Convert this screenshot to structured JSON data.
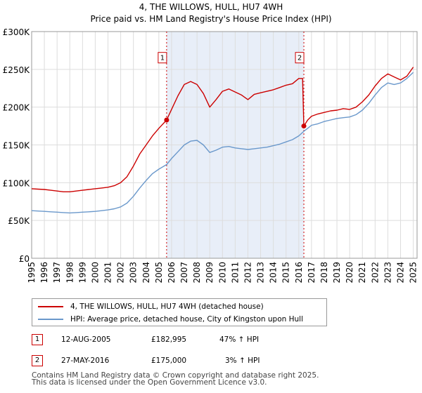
{
  "chart_data": {
    "type": "line",
    "title": "4, THE WILLOWS, HULL, HU7 4WH",
    "subtitle": "Price paid vs. HM Land Registry's House Price Index (HPI)",
    "xlabel": "",
    "ylabel": "",
    "xlim": [
      1995,
      2025.3
    ],
    "ylim": [
      0,
      300000
    ],
    "y_ticks": [
      0,
      50000,
      100000,
      150000,
      200000,
      250000,
      300000
    ],
    "y_tick_labels": [
      "£0",
      "£50K",
      "£100K",
      "£150K",
      "£200K",
      "£250K",
      "£300K"
    ],
    "x_ticks": [
      1995,
      1996,
      1997,
      1998,
      1999,
      2000,
      2001,
      2002,
      2003,
      2004,
      2005,
      2006,
      2007,
      2008,
      2009,
      2010,
      2011,
      2012,
      2013,
      2014,
      2015,
      2016,
      2017,
      2018,
      2019,
      2020,
      2021,
      2022,
      2023,
      2024,
      2025
    ],
    "x_tick_labels": [
      "1995",
      "1996",
      "1997",
      "1998",
      "1999",
      "2000",
      "2001",
      "2002",
      "2003",
      "2004",
      "2005",
      "2006",
      "2007",
      "2008",
      "2009",
      "2010",
      "2011",
      "2012",
      "2013",
      "2014",
      "2015",
      "2016",
      "2017",
      "2018",
      "2019",
      "2020",
      "2021",
      "2022",
      "2023",
      "2024",
      "2025"
    ],
    "grid": true,
    "shaded_region": [
      2005.61,
      2016.4
    ],
    "series": [
      {
        "name": "4, THE WILLOWS, HULL, HU7 4WH (detached house)",
        "color": "#cc0000",
        "x": [
          1995.0,
          1995.5,
          1996.0,
          1996.5,
          1997.0,
          1997.5,
          1998.0,
          1998.5,
          1999.0,
          1999.5,
          2000.0,
          2000.5,
          2001.0,
          2001.5,
          2002.0,
          2002.5,
          2003.0,
          2003.5,
          2004.0,
          2004.5,
          2005.0,
          2005.61,
          2006.0,
          2006.5,
          2007.0,
          2007.5,
          2008.0,
          2008.5,
          2009.0,
          2009.5,
          2010.0,
          2010.5,
          2011.0,
          2011.5,
          2012.0,
          2012.5,
          2013.0,
          2013.5,
          2014.0,
          2014.5,
          2015.0,
          2015.5,
          2016.0,
          2016.3,
          2016.4,
          2016.7,
          2017.0,
          2017.5,
          2018.0,
          2018.5,
          2019.0,
          2019.5,
          2020.0,
          2020.5,
          2021.0,
          2021.5,
          2022.0,
          2022.5,
          2023.0,
          2023.5,
          2024.0,
          2024.5,
          2025.0
        ],
        "y": [
          92000,
          91500,
          91000,
          90000,
          89000,
          88000,
          88000,
          89000,
          90000,
          91000,
          92000,
          93000,
          94000,
          96000,
          100000,
          108000,
          122000,
          138000,
          150000,
          162000,
          172000,
          182995,
          197000,
          215000,
          230000,
          234000,
          230000,
          218000,
          200000,
          210000,
          221000,
          224000,
          220000,
          216000,
          210000,
          217000,
          219000,
          221000,
          223000,
          226000,
          229000,
          231000,
          238000,
          238000,
          175000,
          183000,
          188000,
          191000,
          193000,
          195000,
          196000,
          198000,
          197000,
          200000,
          207000,
          216000,
          228000,
          238000,
          244000,
          240000,
          236000,
          241000,
          253000
        ]
      },
      {
        "name": "HPI: Average price, detached house, City of Kingston upon Hull",
        "color": "#6a98cb",
        "x": [
          1995.0,
          1995.5,
          1996.0,
          1996.5,
          1997.0,
          1997.5,
          1998.0,
          1998.5,
          1999.0,
          1999.5,
          2000.0,
          2000.5,
          2001.0,
          2001.5,
          2002.0,
          2002.5,
          2003.0,
          2003.5,
          2004.0,
          2004.5,
          2005.0,
          2005.61,
          2006.0,
          2006.5,
          2007.0,
          2007.5,
          2008.0,
          2008.5,
          2009.0,
          2009.5,
          2010.0,
          2010.5,
          2011.0,
          2011.5,
          2012.0,
          2012.5,
          2013.0,
          2013.5,
          2014.0,
          2014.5,
          2015.0,
          2015.5,
          2016.0,
          2016.4,
          2016.7,
          2017.0,
          2017.5,
          2018.0,
          2018.5,
          2019.0,
          2019.5,
          2020.0,
          2020.5,
          2021.0,
          2021.5,
          2022.0,
          2022.5,
          2023.0,
          2023.5,
          2024.0,
          2024.5,
          2025.0
        ],
        "y": [
          63000,
          62500,
          62000,
          61500,
          61000,
          60500,
          60000,
          60500,
          61000,
          61500,
          62000,
          63000,
          64000,
          65500,
          68000,
          73000,
          82000,
          93000,
          103000,
          112000,
          118000,
          124000,
          132000,
          141000,
          150000,
          155000,
          156000,
          150000,
          140000,
          143000,
          147000,
          148000,
          146000,
          145000,
          144000,
          145000,
          146000,
          147000,
          149000,
          151000,
          154000,
          157000,
          162000,
          168000,
          172000,
          176000,
          178000,
          181000,
          183000,
          185000,
          186000,
          187000,
          190000,
          196000,
          205000,
          216000,
          226000,
          232000,
          230000,
          232000,
          238000,
          246000
        ]
      }
    ],
    "annotations": [
      {
        "label": "1",
        "x": 2005.61,
        "y": 182995,
        "box_y": 265000
      },
      {
        "label": "2",
        "x": 2016.4,
        "y": 175000,
        "box_y": 265000
      }
    ]
  },
  "legend": {
    "items": [
      {
        "label": "4, THE WILLOWS, HULL, HU7 4WH (detached house)",
        "color": "#cc0000"
      },
      {
        "label": "HPI: Average price, detached house, City of Kingston upon Hull",
        "color": "#6a98cb"
      }
    ]
  },
  "transactions": [
    {
      "num": "1",
      "date": "12-AUG-2005",
      "price": "£182,995",
      "change": "47% ↑ HPI"
    },
    {
      "num": "2",
      "date": "27-MAY-2016",
      "price": "£175,000",
      "change": "3% ↑ HPI"
    }
  ],
  "footer": {
    "line1": "Contains HM Land Registry data © Crown copyright and database right 2025.",
    "line2": "This data is licensed under the Open Government Licence v3.0."
  },
  "colors": {
    "property": "#cc0000",
    "hpi": "#6a98cb",
    "shade": "#e8eef8",
    "grid": "#dddddd"
  }
}
